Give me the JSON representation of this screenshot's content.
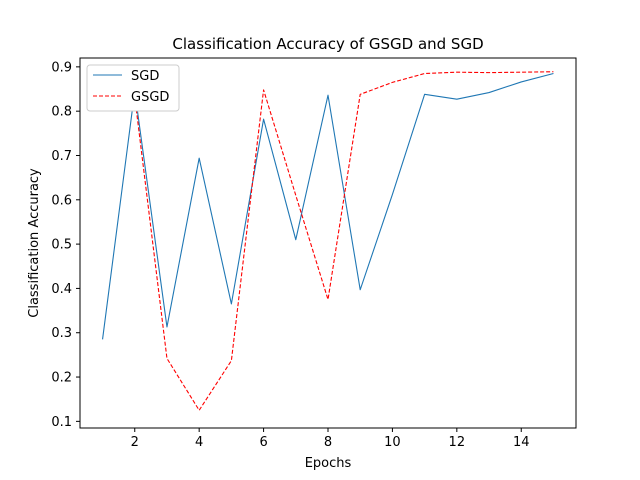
{
  "chart_data": {
    "type": "line",
    "title": "Classification Accuracy of GSGD and SGD",
    "xlabel": "Epochs",
    "ylabel": "Classification Accuracy",
    "x": [
      1,
      2,
      3,
      4,
      5,
      6,
      7,
      8,
      9,
      10,
      11,
      12,
      13,
      14,
      15
    ],
    "xlim": [
      0.3,
      15.7
    ],
    "ylim": [
      0.085,
      0.92
    ],
    "xticks": [
      2,
      4,
      6,
      8,
      10,
      12,
      14
    ],
    "yticks": [
      0.1,
      0.2,
      0.3,
      0.4,
      0.5,
      0.6,
      0.7,
      0.8,
      0.9
    ],
    "xtick_labels": [
      "2",
      "4",
      "6",
      "8",
      "10",
      "12",
      "14"
    ],
    "ytick_labels": [
      "0.1",
      "0.2",
      "0.3",
      "0.4",
      "0.5",
      "0.6",
      "0.7",
      "0.8",
      "0.9"
    ],
    "grid": false,
    "legend_position": "top-left",
    "series": [
      {
        "name": "SGD",
        "color": "#1f77b4",
        "line_style": "solid",
        "values": [
          0.285,
          0.845,
          0.313,
          0.694,
          0.365,
          0.782,
          0.51,
          0.836,
          0.397,
          0.612,
          0.838,
          0.827,
          0.842,
          0.866,
          0.885
        ]
      },
      {
        "name": "GSGD",
        "color": "#ff0000",
        "line_style": "dashed",
        "values": [
          0.891,
          0.832,
          0.242,
          0.125,
          0.237,
          0.848,
          0.61,
          0.375,
          0.838,
          0.865,
          0.885,
          0.888,
          0.887,
          0.888,
          0.889
        ]
      }
    ]
  }
}
